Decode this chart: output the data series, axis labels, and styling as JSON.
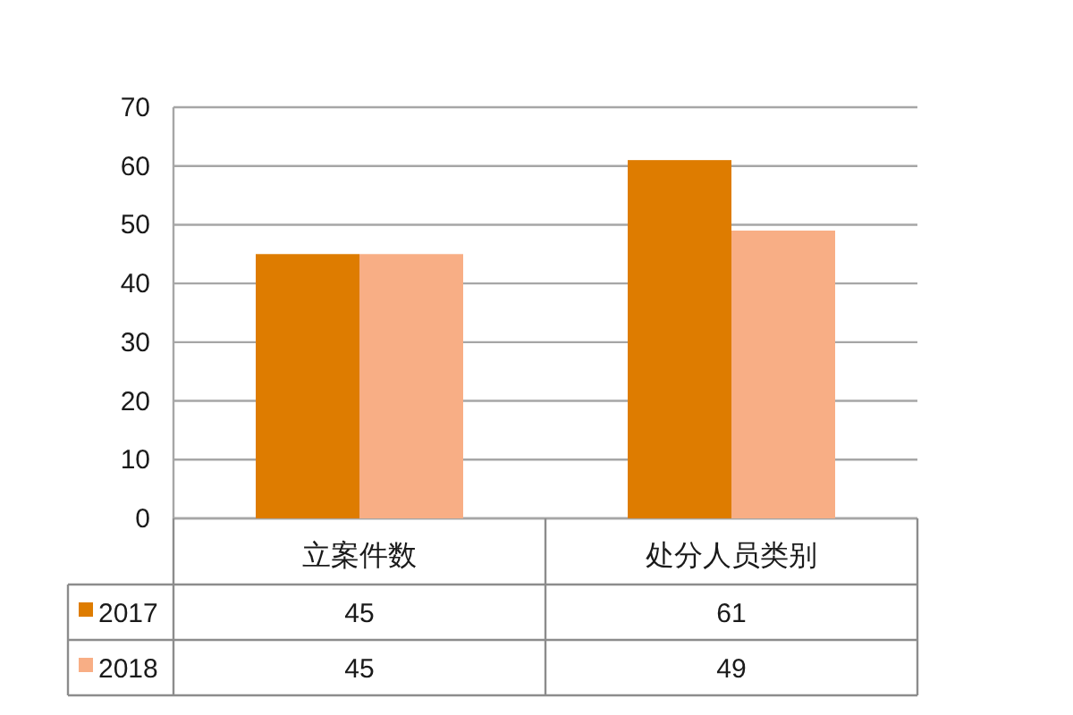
{
  "chart_data": {
    "type": "bar",
    "categories": [
      "立案件数",
      "处分人员类别"
    ],
    "series": [
      {
        "name": "2017",
        "color": "#de7c00",
        "values": [
          45,
          61
        ]
      },
      {
        "name": "2018",
        "color": "#f8ae85",
        "values": [
          45,
          49
        ]
      }
    ],
    "ylim": [
      0,
      70
    ],
    "yticks": [
      0,
      10,
      20,
      30,
      40,
      50,
      60,
      70
    ],
    "grid": "y",
    "legend": "bottom",
    "data_labels": true
  }
}
